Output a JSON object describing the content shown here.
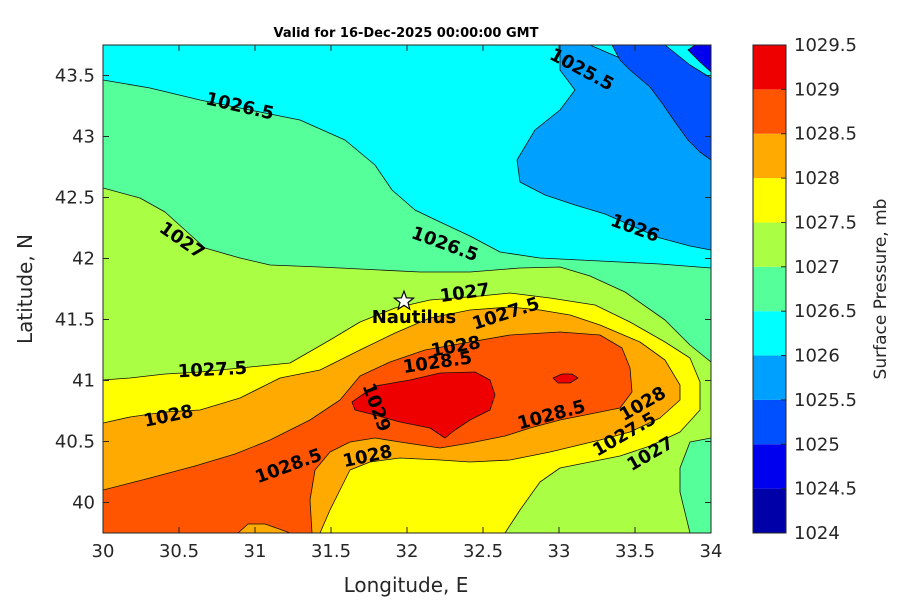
{
  "chart_data": {
    "type": "contourf",
    "title": "Valid for 16-Dec-2025 00:00:00 GMT",
    "xlabel": "Longitude, E",
    "ylabel": "Latitude, N",
    "xlim": [
      30,
      34
    ],
    "ylim": [
      39.75,
      43.75
    ],
    "xticks": [
      "30",
      "30.5",
      "31",
      "31.5",
      "32",
      "32.5",
      "33",
      "33.5",
      "34"
    ],
    "yticks": [
      "40",
      "40.5",
      "41",
      "41.5",
      "42",
      "42.5",
      "43",
      "43.5"
    ],
    "xtick_values": [
      30,
      30.5,
      31,
      31.5,
      32,
      32.5,
      33,
      33.5,
      34
    ],
    "ytick_values": [
      40,
      40.5,
      41,
      41.5,
      42,
      42.5,
      43,
      43.5
    ],
    "colorbar": {
      "label": "Surface Pressure, mb",
      "ticks": [
        "1024",
        "1024.5",
        "1025",
        "1025.5",
        "1026",
        "1026.5",
        "1027",
        "1027.5",
        "1028",
        "1028.5",
        "1029",
        "1029.5"
      ],
      "levels": [
        1024,
        1024.5,
        1025,
        1025.5,
        1026,
        1026.5,
        1027,
        1027.5,
        1028,
        1028.5,
        1029,
        1029.5
      ],
      "colors": [
        "#0000a8",
        "#0000ee",
        "#0050ff",
        "#00a0ff",
        "#00ffff",
        "#55ff99",
        "#aaff44",
        "#ffff00",
        "#ffaa00",
        "#ff5500",
        "#ee0000",
        "#aa0000"
      ]
    },
    "contour_labels": [
      {
        "text": "1025.5",
        "lon": 33.15,
        "lat": 43.55
      },
      {
        "text": "1026.5",
        "lon": 30.9,
        "lat": 43.25
      },
      {
        "text": "1026",
        "lon": 33.5,
        "lat": 42.25
      },
      {
        "text": "1026.5",
        "lon": 32.25,
        "lat": 42.12
      },
      {
        "text": "1027",
        "lon": 30.52,
        "lat": 42.15
      },
      {
        "text": "1027",
        "lon": 32.38,
        "lat": 41.72
      },
      {
        "text": "1027.5",
        "lon": 32.65,
        "lat": 41.55
      },
      {
        "text": "1028",
        "lon": 32.32,
        "lat": 41.28
      },
      {
        "text": "1028.5",
        "lon": 32.2,
        "lat": 41.15
      },
      {
        "text": "1027.5",
        "lon": 30.72,
        "lat": 41.09
      },
      {
        "text": "1028",
        "lon": 30.43,
        "lat": 40.71
      },
      {
        "text": "1029",
        "lon": 31.8,
        "lat": 40.78
      },
      {
        "text": "1028.5",
        "lon": 32.95,
        "lat": 40.72
      },
      {
        "text": "1028",
        "lon": 33.55,
        "lat": 40.81
      },
      {
        "text": "1027.5",
        "lon": 33.43,
        "lat": 40.56
      },
      {
        "text": "1027",
        "lon": 33.6,
        "lat": 40.4
      },
      {
        "text": "1028.5",
        "lon": 31.22,
        "lat": 40.3
      },
      {
        "text": "1028",
        "lon": 31.74,
        "lat": 40.38
      }
    ],
    "marker": {
      "label": "Nautilus",
      "lon": 31.98,
      "lat": 41.65,
      "symbol": "star"
    }
  }
}
